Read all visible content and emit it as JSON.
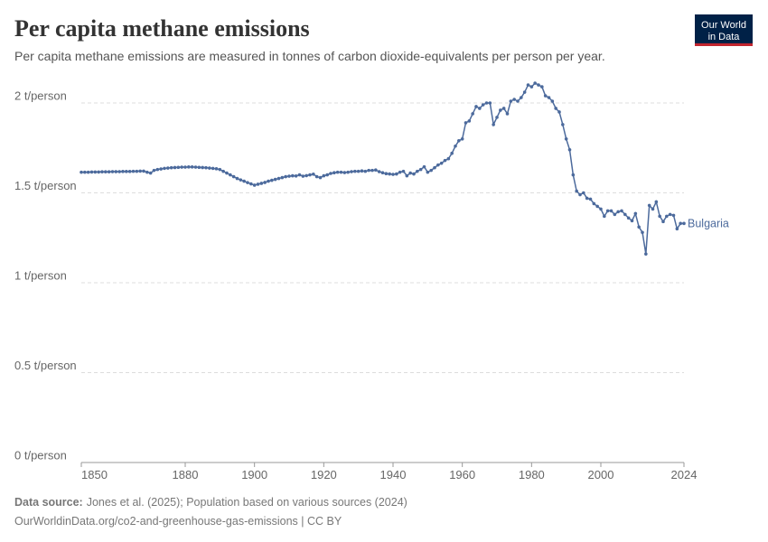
{
  "chart_data": {
    "type": "line",
    "title": "Per capita methane emissions",
    "subtitle": "Per capita methane emissions are measured in tonnes of carbon dioxide-equivalents per person per year.",
    "source_label": "Data source:",
    "source": "Jones et al. (2025); Population based on various sources (2024)",
    "footer": "OurWorldinData.org/co2-and-greenhouse-gas-emissions | CC BY",
    "xlim": [
      1850,
      2024
    ],
    "xticks": [
      1850,
      1880,
      1900,
      1920,
      1940,
      1960,
      1980,
      2000,
      2024
    ],
    "ylim": [
      0,
      2
    ],
    "yticks": [
      {
        "value": 0,
        "label": "0 t/person"
      },
      {
        "value": 0.5,
        "label": "0.5 t/person"
      },
      {
        "value": 1,
        "label": "1 t/person"
      },
      {
        "value": 1.5,
        "label": "1.5 t/person"
      },
      {
        "value": 2,
        "label": "2 t/person"
      }
    ],
    "grid": true,
    "x": [
      1850,
      1851,
      1852,
      1853,
      1854,
      1855,
      1856,
      1857,
      1858,
      1859,
      1860,
      1861,
      1862,
      1863,
      1864,
      1865,
      1866,
      1867,
      1868,
      1869,
      1870,
      1871,
      1872,
      1873,
      1874,
      1875,
      1876,
      1877,
      1878,
      1879,
      1880,
      1881,
      1882,
      1883,
      1884,
      1885,
      1886,
      1887,
      1888,
      1889,
      1890,
      1891,
      1892,
      1893,
      1894,
      1895,
      1896,
      1897,
      1898,
      1899,
      1900,
      1901,
      1902,
      1903,
      1904,
      1905,
      1906,
      1907,
      1908,
      1909,
      1910,
      1911,
      1912,
      1913,
      1914,
      1915,
      1916,
      1917,
      1918,
      1919,
      1920,
      1921,
      1922,
      1923,
      1924,
      1925,
      1926,
      1927,
      1928,
      1929,
      1930,
      1931,
      1932,
      1933,
      1934,
      1935,
      1936,
      1937,
      1938,
      1939,
      1940,
      1941,
      1942,
      1943,
      1944,
      1945,
      1946,
      1947,
      1948,
      1949,
      1950,
      1951,
      1952,
      1953,
      1954,
      1955,
      1956,
      1957,
      1958,
      1959,
      1960,
      1961,
      1962,
      1963,
      1964,
      1965,
      1966,
      1967,
      1968,
      1969,
      1970,
      1971,
      1972,
      1973,
      1974,
      1975,
      1976,
      1977,
      1978,
      1979,
      1980,
      1981,
      1982,
      1983,
      1984,
      1985,
      1986,
      1987,
      1988,
      1989,
      1990,
      1991,
      1992,
      1993,
      1994,
      1995,
      1996,
      1997,
      1998,
      1999,
      2000,
      2001,
      2002,
      2003,
      2004,
      2005,
      2006,
      2007,
      2008,
      2009,
      2010,
      2011,
      2012,
      2013,
      2014,
      2015,
      2016,
      2017,
      2018,
      2019,
      2020,
      2021,
      2022,
      2023,
      2024
    ],
    "series": [
      {
        "name": "Bulgaria",
        "color": "#4c6a9c",
        "values": [
          1.615,
          1.615,
          1.615,
          1.616,
          1.616,
          1.616,
          1.617,
          1.617,
          1.617,
          1.618,
          1.618,
          1.618,
          1.619,
          1.619,
          1.619,
          1.62,
          1.62,
          1.621,
          1.621,
          1.615,
          1.61,
          1.625,
          1.63,
          1.633,
          1.636,
          1.638,
          1.64,
          1.641,
          1.642,
          1.643,
          1.643,
          1.644,
          1.644,
          1.643,
          1.642,
          1.641,
          1.64,
          1.638,
          1.636,
          1.634,
          1.63,
          1.62,
          1.61,
          1.6,
          1.59,
          1.58,
          1.572,
          1.565,
          1.557,
          1.55,
          1.543,
          1.548,
          1.553,
          1.558,
          1.565,
          1.57,
          1.575,
          1.58,
          1.585,
          1.59,
          1.593,
          1.595,
          1.594,
          1.6,
          1.593,
          1.596,
          1.6,
          1.604,
          1.59,
          1.585,
          1.595,
          1.6,
          1.608,
          1.612,
          1.615,
          1.615,
          1.613,
          1.615,
          1.618,
          1.62,
          1.62,
          1.622,
          1.62,
          1.625,
          1.625,
          1.627,
          1.618,
          1.612,
          1.607,
          1.605,
          1.603,
          1.605,
          1.615,
          1.62,
          1.595,
          1.61,
          1.605,
          1.62,
          1.63,
          1.645,
          1.615,
          1.625,
          1.64,
          1.655,
          1.665,
          1.68,
          1.69,
          1.72,
          1.76,
          1.79,
          1.8,
          1.89,
          1.9,
          1.94,
          1.98,
          1.97,
          1.99,
          2.0,
          2.0,
          1.88,
          1.92,
          1.96,
          1.97,
          1.94,
          2.01,
          2.02,
          2.01,
          2.03,
          2.06,
          2.1,
          2.09,
          2.11,
          2.1,
          2.09,
          2.04,
          2.03,
          2.01,
          1.97,
          1.95,
          1.88,
          1.8,
          1.74,
          1.6,
          1.51,
          1.49,
          1.5,
          1.47,
          1.465,
          1.44,
          1.425,
          1.41,
          1.37,
          1.4,
          1.4,
          1.38,
          1.395,
          1.4,
          1.38,
          1.36,
          1.345,
          1.385,
          1.31,
          1.28,
          1.16,
          1.43,
          1.41,
          1.45,
          1.37,
          1.34,
          1.37,
          1.38,
          1.375,
          1.3,
          1.33,
          1.33
        ]
      }
    ]
  },
  "logo": {
    "line1": "Our World",
    "line2": "in Data"
  }
}
